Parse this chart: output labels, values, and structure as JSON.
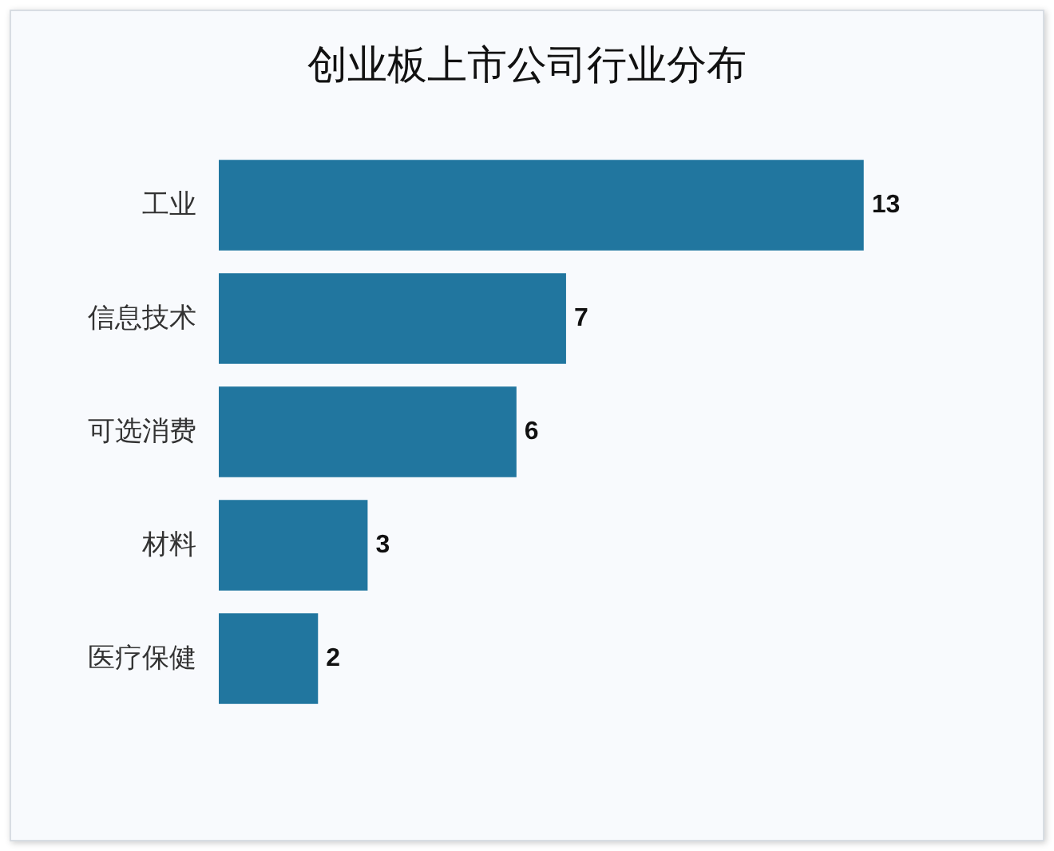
{
  "chart_data": {
    "type": "bar",
    "orientation": "horizontal",
    "title": "创业板上市公司行业分布",
    "categories": [
      "工业",
      "信息技术",
      "可选消费",
      "材料",
      "医疗保健"
    ],
    "values": [
      13,
      7,
      6,
      3,
      2
    ],
    "color": "#21769f",
    "data_labels": true
  }
}
